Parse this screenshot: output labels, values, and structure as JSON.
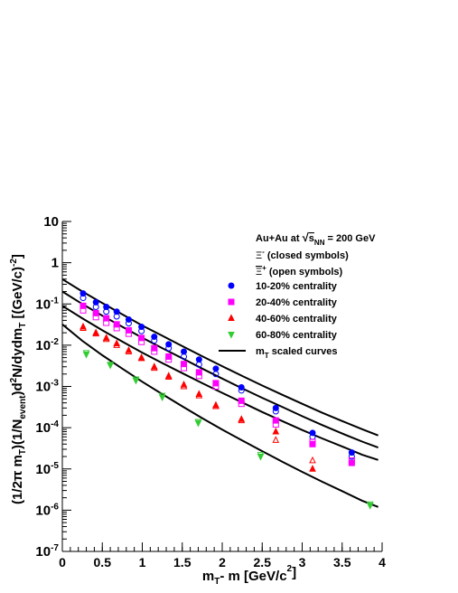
{
  "chart_data": {
    "type": "scatter",
    "xlabel": "m_T - m [GeV/c^2]",
    "ylabel": "(1/2π m_T)(1/N_event)d^2N/dydm_T [(GeV/c)^-2]",
    "xlim": [
      0,
      4
    ],
    "ylim": [
      1e-07,
      10
    ],
    "yscale": "log",
    "grid": false,
    "legend_position": "top-right",
    "x_ticks": [
      0,
      0.5,
      1,
      1.5,
      2,
      2.5,
      3,
      3.5,
      4
    ],
    "x_tick_labels": [
      "0",
      "0.5",
      "1",
      "1.5",
      "2",
      "2.5",
      "3",
      "3.5",
      "4"
    ],
    "y_ticks": [
      1e-07,
      1e-06,
      1e-05,
      0.0001,
      0.001,
      0.01,
      0.1,
      1,
      10
    ],
    "y_tick_labels": [
      {
        "base": "10",
        "exp": "-7"
      },
      {
        "base": "10",
        "exp": "-6"
      },
      {
        "base": "10",
        "exp": "-5"
      },
      {
        "base": "10",
        "exp": "-4"
      },
      {
        "base": "10",
        "exp": "-3"
      },
      {
        "base": "10",
        "exp": "-2"
      },
      {
        "base": "10",
        "exp": "-1"
      },
      {
        "base": "1",
        "exp": ""
      },
      {
        "base": "10",
        "exp": ""
      }
    ],
    "legend": {
      "header_prefix": "Au+Au at ",
      "header_energy": "s",
      "header_energy_sub": "NN",
      "header_suffix": " = 200 GeV",
      "xi_minus_symbol": "Ξ",
      "xi_minus_sup": "-",
      "xi_minus_note": " (closed symbols)",
      "xi_plus_symbol": "Ξ",
      "xi_plus_sup": "+",
      "xi_plus_note": " (open symbols)",
      "entries": [
        {
          "label": "10-20% centrality",
          "color": "#0000ff",
          "marker": "circle"
        },
        {
          "label": "20-40% centrality",
          "color": "#ff00ff",
          "marker": "square"
        },
        {
          "label": "40-60% centrality",
          "color": "#ff0000",
          "marker": "triangle-up"
        },
        {
          "label": "60-80% centrality",
          "color": "#33cc33",
          "marker": "triangle-down"
        }
      ],
      "curve_label_prefix": "m",
      "curve_label_sub": "T",
      "curve_label_suffix": " scaled curves"
    },
    "series": [
      {
        "name": "10-20% centrality",
        "color": "#0000ff",
        "marker": "circle",
        "closed": {
          "x": [
            0.26,
            0.42,
            0.55,
            0.68,
            0.83,
            0.99,
            1.15,
            1.33,
            1.52,
            1.71,
            1.92,
            2.24,
            2.67,
            3.13,
            3.62
          ],
          "y": [
            0.18,
            0.11,
            0.085,
            0.065,
            0.042,
            0.028,
            0.016,
            0.0105,
            0.007,
            0.0045,
            0.0027,
            0.00095,
            0.0003,
            7.5e-05,
            2.5e-05
          ]
        },
        "open": {
          "x": [
            0.26,
            0.42,
            0.55,
            0.68,
            0.83,
            0.99,
            1.15,
            1.33,
            1.52,
            1.71,
            1.92,
            2.24,
            2.67,
            3.13,
            3.62
          ],
          "y": [
            0.14,
            0.085,
            0.065,
            0.05,
            0.034,
            0.022,
            0.013,
            0.0085,
            0.0053,
            0.0034,
            0.002,
            0.0008,
            0.00025,
            6e-05,
            2e-05
          ]
        }
      },
      {
        "name": "20-40% centrality",
        "color": "#ff00ff",
        "marker": "square",
        "closed": {
          "x": [
            0.26,
            0.42,
            0.55,
            0.68,
            0.83,
            0.99,
            1.15,
            1.33,
            1.52,
            1.71,
            1.92,
            2.24,
            2.67,
            3.13,
            3.62
          ],
          "y": [
            0.09,
            0.06,
            0.045,
            0.032,
            0.023,
            0.015,
            0.0085,
            0.0053,
            0.0035,
            0.0022,
            0.0012,
            0.00045,
            0.00015,
            4e-05,
            1.4e-05
          ]
        },
        "open": {
          "x": [
            0.26,
            0.42,
            0.55,
            0.68,
            0.83,
            0.99,
            1.15,
            1.33,
            1.52,
            1.71,
            1.92,
            2.24,
            2.67,
            3.13,
            3.62
          ],
          "y": [
            0.07,
            0.048,
            0.035,
            0.026,
            0.019,
            0.012,
            0.007,
            0.0045,
            0.0028,
            0.0018,
            0.001,
            0.00038,
            0.00012,
            4.5e-05,
            1.6e-05
          ]
        }
      },
      {
        "name": "40-60% centrality",
        "color": "#ff0000",
        "marker": "triangle-up",
        "closed": {
          "x": [
            0.26,
            0.42,
            0.55,
            0.68,
            0.83,
            0.99,
            1.15,
            1.33,
            1.52,
            1.71,
            1.92,
            2.24,
            2.67,
            3.13
          ],
          "y": [
            0.028,
            0.02,
            0.015,
            0.011,
            0.0075,
            0.005,
            0.003,
            0.0018,
            0.0011,
            0.00065,
            0.00035,
            0.00016,
            8e-05,
            1e-05
          ]
        },
        "open": {
          "x": [
            0.26,
            0.42,
            0.55,
            0.68,
            0.83,
            0.99,
            1.15,
            1.33,
            1.52,
            1.71,
            1.92,
            2.24,
            2.67,
            3.13
          ],
          "y": [
            0.026,
            0.019,
            0.014,
            0.01,
            0.007,
            0.0048,
            0.0028,
            0.0017,
            0.001,
            0.0006,
            0.00033,
            0.00015,
            5e-05,
            1.6e-05
          ]
        }
      },
      {
        "name": "60-80% centrality",
        "color": "#33cc33",
        "marker": "triangle-down",
        "closed": {
          "x": [
            0.3,
            0.6,
            0.92,
            1.25,
            1.7,
            2.48,
            3.85
          ],
          "y": [
            0.006,
            0.0033,
            0.0014,
            0.00055,
            0.00013,
            2e-05,
            1.3e-06
          ]
        },
        "open": {
          "x": [
            0.3,
            0.6,
            0.92,
            1.25,
            1.7,
            2.48,
            3.85
          ],
          "y": [
            0.0065,
            0.0034,
            0.0015,
            0.0006,
            0.00014,
            2.2e-05,
            1.4e-06
          ]
        }
      }
    ],
    "curves": [
      {
        "x": [
          0,
          0.25,
          0.5,
          0.75,
          1.0,
          1.25,
          1.5,
          1.75,
          2.0,
          2.25,
          2.5,
          2.75,
          3.0,
          3.25,
          3.5,
          3.75,
          3.95
        ],
        "y": [
          0.4,
          0.2,
          0.105,
          0.056,
          0.03,
          0.017,
          0.0095,
          0.0054,
          0.0031,
          0.0018,
          0.00105,
          0.00063,
          0.00038,
          0.00023,
          0.000145,
          9.2e-05,
          6.5e-05
        ]
      },
      {
        "x": [
          0,
          0.25,
          0.5,
          0.75,
          1.0,
          1.25,
          1.5,
          1.75,
          2.0,
          2.25,
          2.5,
          2.75,
          3.0,
          3.25,
          3.5,
          3.75,
          3.95
        ],
        "y": [
          0.2,
          0.1,
          0.052,
          0.028,
          0.0152,
          0.0085,
          0.0048,
          0.0027,
          0.00155,
          0.0009,
          0.00053,
          0.00032,
          0.00019,
          0.000116,
          7.2e-05,
          4.6e-05,
          3.3e-05
        ]
      },
      {
        "x": [
          0,
          0.25,
          0.5,
          0.75,
          1.0,
          1.25,
          1.5,
          1.75,
          2.0,
          2.25,
          2.5,
          2.75,
          3.0,
          3.25,
          3.5,
          3.75,
          3.95
        ],
        "y": [
          0.09,
          0.045,
          0.023,
          0.0122,
          0.0066,
          0.0037,
          0.0021,
          0.0012,
          0.0007,
          0.00041,
          0.00024,
          0.000145,
          8.8e-05,
          5.5e-05,
          3.5e-05,
          2.2e-05,
          1.65e-05
        ]
      },
      {
        "x": [
          0,
          0.25,
          0.5,
          0.75,
          1.0,
          1.25,
          1.5,
          1.75,
          2.0,
          2.25,
          2.5,
          2.75,
          3.0,
          3.25,
          3.5,
          3.75,
          3.95
        ],
        "y": [
          0.032,
          0.0128,
          0.0057,
          0.0027,
          0.0013,
          0.00065,
          0.00033,
          0.00017,
          9e-05,
          4.9e-05,
          2.7e-05,
          1.5e-05,
          8.5e-06,
          4.9e-06,
          2.9e-06,
          1.7e-06,
          1.2e-06
        ]
      }
    ]
  }
}
